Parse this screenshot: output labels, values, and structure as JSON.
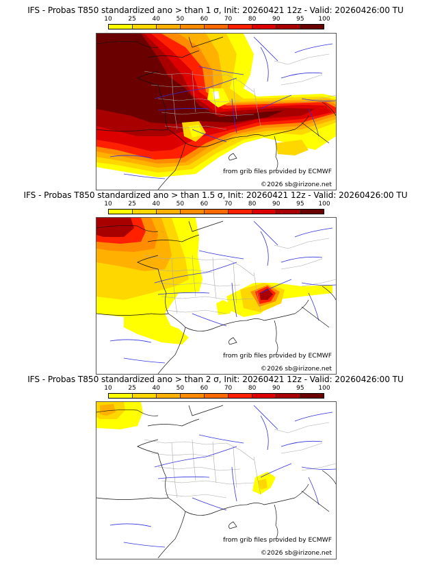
{
  "panels": [
    {
      "title": "IFS - Probas T850  standardized ano > than 1 σ, Init: 20260421 12z - Valid: 20260426:00 TU",
      "threshold_sigma": 1,
      "max_coverage": "widespread 95-100 over western France and Atlantic"
    },
    {
      "title": "IFS - Probas T850  standardized ano > than 1.5 σ, Init: 20260421 12z - Valid: 20260426:00 TU",
      "threshold_sigma": 1.5,
      "max_coverage": "80-95 over Channel and southern Alps"
    },
    {
      "title": "IFS - Probas T850  standardized ano > than 2 σ, Init: 20260421 12z - Valid: 20260426:00 TU",
      "threshold_sigma": 2,
      "max_coverage": "10-40 over Channel and southern Alps"
    }
  ],
  "legend": {
    "ticks": [
      "10",
      "25",
      "40",
      "50",
      "60",
      "70",
      "80",
      "90",
      "95",
      "100"
    ],
    "colors": [
      "#ffff00",
      "#ffd700",
      "#ffb000",
      "#ff8c00",
      "#ff6a00",
      "#ff2000",
      "#dc0000",
      "#a80000",
      "#6a0000"
    ]
  },
  "credits": {
    "source": "from grib files provided by ECMWF",
    "copyright": "©2026 sb@irizone.net"
  },
  "map_colors": {
    "coast": "#111111",
    "rivers": "#3030e0",
    "borders": "#a8a8a8"
  }
}
